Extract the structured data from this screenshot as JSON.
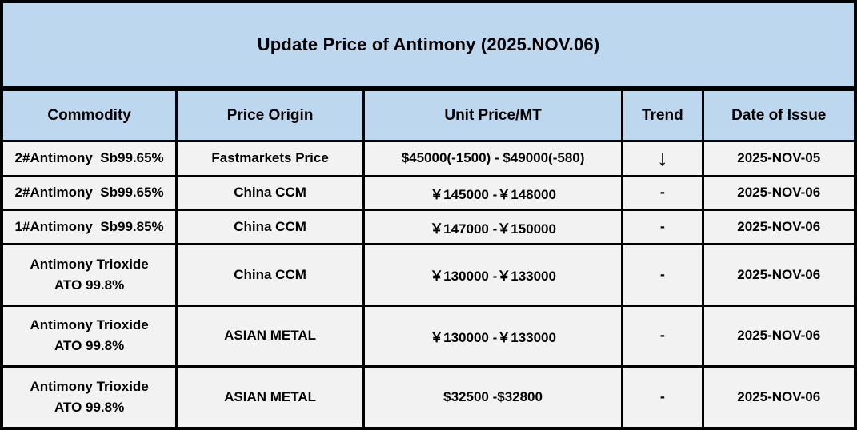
{
  "title": "Update Price of Antimony (2025.NOV.06)",
  "colors": {
    "panel_blue": "#BDD7EE",
    "row_gray": "#F2F2F2",
    "border_black": "#000000"
  },
  "table": {
    "columns": [
      "Commodity",
      "Price Origin",
      "Unit Price/MT",
      "Trend",
      "Date of Issue"
    ],
    "rows": [
      {
        "commodity": "2#Antimony  Sb99.65%",
        "origin": "Fastmarkets Price",
        "price": "$45000(-1500) - $49000(-580)",
        "trend": "↓",
        "date": "2025-NOV-05"
      },
      {
        "commodity": "2#Antimony  Sb99.65%",
        "origin": "China CCM",
        "price": "￥145000 -￥148000",
        "trend": "-",
        "date": "2025-NOV-06"
      },
      {
        "commodity": "1#Antimony  Sb99.85%",
        "origin": "China CCM",
        "price": "￥147000 -￥150000",
        "trend": "-",
        "date": "2025-NOV-06"
      },
      {
        "commodity": "Antimony Trioxide\nATO 99.8%",
        "origin": "China CCM",
        "price": "￥130000 -￥133000",
        "trend": "-",
        "date": "2025-NOV-06"
      },
      {
        "commodity": "Antimony Trioxide\nATO 99.8%",
        "origin": "ASIAN METAL",
        "price": "￥130000 -￥133000",
        "trend": "-",
        "date": "2025-NOV-06"
      },
      {
        "commodity": "Antimony Trioxide\nATO 99.8%",
        "origin": "ASIAN METAL",
        "price": "$32500 -$32800",
        "trend": "-",
        "date": "2025-NOV-06"
      }
    ]
  },
  "chart_data": {
    "type": "table",
    "title": "Update Price of Antimony (2025.NOV.06)",
    "columns": [
      "Commodity",
      "Price Origin",
      "Unit Price/MT",
      "Trend",
      "Date of Issue"
    ],
    "rows": [
      [
        "2#Antimony  Sb99.65%",
        "Fastmarkets Price",
        "$45000(-1500) - $49000(-580)",
        "down",
        "2025-NOV-05"
      ],
      [
        "2#Antimony  Sb99.65%",
        "China CCM",
        "￥145000 -￥148000",
        "unchanged",
        "2025-NOV-06"
      ],
      [
        "1#Antimony  Sb99.85%",
        "China CCM",
        "￥147000 -￥150000",
        "unchanged",
        "2025-NOV-06"
      ],
      [
        "Antimony Trioxide ATO 99.8%",
        "China CCM",
        "￥130000 -￥133000",
        "unchanged",
        "2025-NOV-06"
      ],
      [
        "Antimony Trioxide ATO 99.8%",
        "ASIAN METAL",
        "￥130000 -￥133000",
        "unchanged",
        "2025-NOV-06"
      ],
      [
        "Antimony Trioxide ATO 99.8%",
        "ASIAN METAL",
        "$32500 -$32800",
        "unchanged",
        "2025-NOV-06"
      ]
    ]
  }
}
